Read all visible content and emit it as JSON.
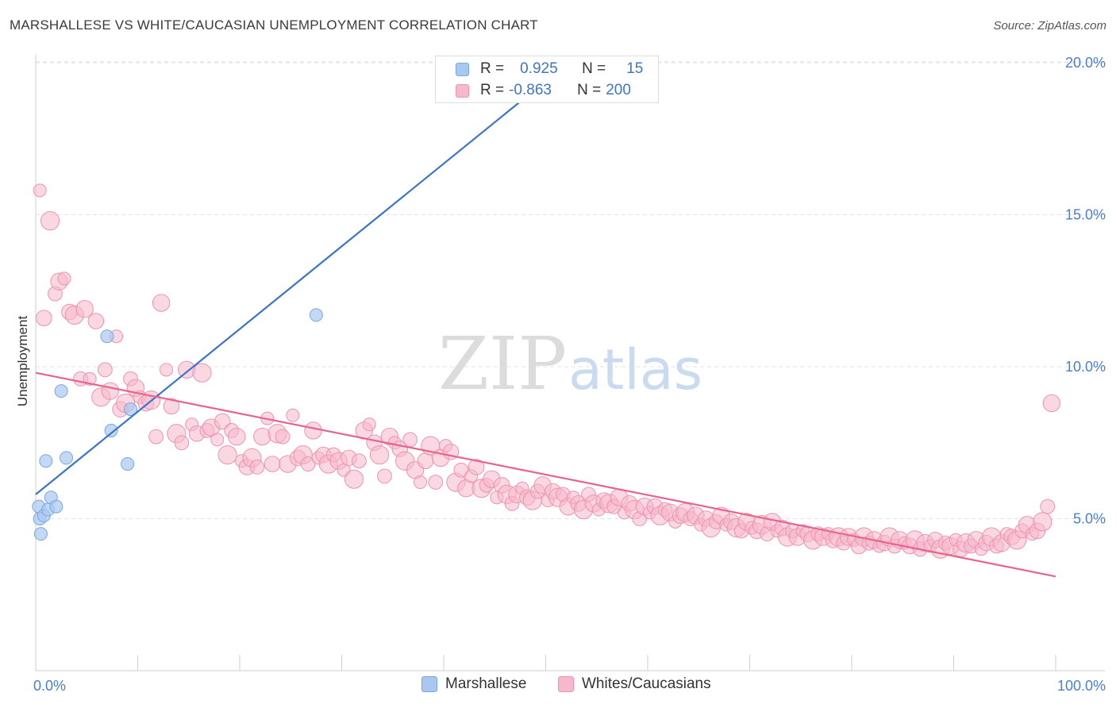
{
  "header": {
    "title": "MARSHALLESE VS WHITE/CAUCASIAN UNEMPLOYMENT CORRELATION CHART",
    "source": "Source: ZipAtlas.com"
  },
  "watermark": {
    "zip": "ZIP",
    "atlas": "atlas"
  },
  "colors": {
    "blue_fill": "#a9c8f0",
    "blue_stroke": "#7aa7e0",
    "blue_line": "#3a74cc",
    "pink_fill": "#f6b8cb",
    "pink_stroke": "#ee93b0",
    "pink_line": "#e8648f",
    "axis_text": "#4a7fcf"
  },
  "legend": {
    "series": [
      {
        "r_label": "R =",
        "r_value": "0.925",
        "n_label": "N =",
        "n_value": "15"
      },
      {
        "r_label": "R =",
        "r_value": "-0.863",
        "n_label": "N =",
        "n_value": "200"
      }
    ]
  },
  "bottom_legend": [
    "Marshallese",
    "Whites/Caucasians"
  ],
  "chart_data": {
    "type": "scatter",
    "title": "MARSHALLESE VS WHITE/CAUCASIAN UNEMPLOYMENT CORRELATION CHART",
    "xlabel": "",
    "ylabel": "Unemployment",
    "xlim": [
      0,
      100
    ],
    "ylim": [
      0,
      20.5
    ],
    "x_ticks": [
      "0.0%",
      "100.0%"
    ],
    "y_ticks": [
      {
        "value": 5,
        "label": "5.0%"
      },
      {
        "value": 10,
        "label": "10.0%"
      },
      {
        "value": 15,
        "label": "15.0%"
      },
      {
        "value": 20,
        "label": "20.0%"
      }
    ],
    "grid": "horizontal dashed",
    "legend_position": "top-center",
    "series": [
      {
        "name": "Marshallese",
        "trend": {
          "x": [
            0,
            50
          ],
          "y": [
            5.8,
            19.4
          ]
        },
        "points": [
          [
            0.3,
            5.4
          ],
          [
            0.4,
            5.0
          ],
          [
            0.5,
            4.5
          ],
          [
            0.8,
            5.1
          ],
          [
            1.0,
            6.9
          ],
          [
            1.2,
            5.3
          ],
          [
            1.5,
            5.7
          ],
          [
            2.0,
            5.4
          ],
          [
            2.5,
            9.2
          ],
          [
            3.0,
            7.0
          ],
          [
            7.0,
            11.0
          ],
          [
            7.4,
            7.9
          ],
          [
            9.0,
            6.8
          ],
          [
            9.3,
            8.6
          ],
          [
            27.5,
            11.7
          ]
        ]
      },
      {
        "name": "Whites/Caucasians",
        "trend": {
          "x": [
            0,
            100
          ],
          "y": [
            9.8,
            3.1
          ]
        },
        "points": [
          [
            0.4,
            15.8
          ],
          [
            0.8,
            11.6
          ],
          [
            1.4,
            14.8
          ],
          [
            1.9,
            12.4
          ],
          [
            2.3,
            12.8
          ],
          [
            2.8,
            12.9
          ],
          [
            3.3,
            11.8
          ],
          [
            3.8,
            11.7
          ],
          [
            4.4,
            9.6
          ],
          [
            4.8,
            11.9
          ],
          [
            5.3,
            9.6
          ],
          [
            5.9,
            11.5
          ],
          [
            6.4,
            9.0
          ],
          [
            6.8,
            9.9
          ],
          [
            7.3,
            9.2
          ],
          [
            7.9,
            11.0
          ],
          [
            8.3,
            8.6
          ],
          [
            8.8,
            8.8
          ],
          [
            9.3,
            9.6
          ],
          [
            9.8,
            9.3
          ],
          [
            10.2,
            9.0
          ],
          [
            10.8,
            8.8
          ],
          [
            11.3,
            8.9
          ],
          [
            11.8,
            7.7
          ],
          [
            12.3,
            12.1
          ],
          [
            12.8,
            9.9
          ],
          [
            13.3,
            8.7
          ],
          [
            13.8,
            7.8
          ],
          [
            14.3,
            7.5
          ],
          [
            14.8,
            9.9
          ],
          [
            15.3,
            8.1
          ],
          [
            15.8,
            7.8
          ],
          [
            16.3,
            9.8
          ],
          [
            16.8,
            7.9
          ],
          [
            17.2,
            8.0
          ],
          [
            17.8,
            7.6
          ],
          [
            18.3,
            8.2
          ],
          [
            18.8,
            7.1
          ],
          [
            19.2,
            7.9
          ],
          [
            19.7,
            7.7
          ],
          [
            20.2,
            6.9
          ],
          [
            20.7,
            6.7
          ],
          [
            21.2,
            7.0
          ],
          [
            21.7,
            6.7
          ],
          [
            22.2,
            7.7
          ],
          [
            22.7,
            8.3
          ],
          [
            23.2,
            6.8
          ],
          [
            23.7,
            7.8
          ],
          [
            24.2,
            7.7
          ],
          [
            24.7,
            6.8
          ],
          [
            25.2,
            8.4
          ],
          [
            25.7,
            7.0
          ],
          [
            26.2,
            7.1
          ],
          [
            26.7,
            6.8
          ],
          [
            27.2,
            7.9
          ],
          [
            27.7,
            7.0
          ],
          [
            28.2,
            7.1
          ],
          [
            28.7,
            6.8
          ],
          [
            29.2,
            7.1
          ],
          [
            29.7,
            6.9
          ],
          [
            30.2,
            6.6
          ],
          [
            30.7,
            7.0
          ],
          [
            31.2,
            6.3
          ],
          [
            31.7,
            6.9
          ],
          [
            32.2,
            7.9
          ],
          [
            32.7,
            8.1
          ],
          [
            33.2,
            7.5
          ],
          [
            33.7,
            7.1
          ],
          [
            34.2,
            6.4
          ],
          [
            34.7,
            7.7
          ],
          [
            35.2,
            7.5
          ],
          [
            35.7,
            7.3
          ],
          [
            36.2,
            6.9
          ],
          [
            36.7,
            7.6
          ],
          [
            37.2,
            6.6
          ],
          [
            37.7,
            6.2
          ],
          [
            38.2,
            6.9
          ],
          [
            38.7,
            7.4
          ],
          [
            39.2,
            6.2
          ],
          [
            39.7,
            7.0
          ],
          [
            40.2,
            7.4
          ],
          [
            40.7,
            7.2
          ],
          [
            41.2,
            6.2
          ],
          [
            41.7,
            6.6
          ],
          [
            42.2,
            6.0
          ],
          [
            42.7,
            6.4
          ],
          [
            43.2,
            6.7
          ],
          [
            43.7,
            6.0
          ],
          [
            44.2,
            6.1
          ],
          [
            44.7,
            6.3
          ],
          [
            45.2,
            5.7
          ],
          [
            45.7,
            6.1
          ],
          [
            46.2,
            5.8
          ],
          [
            46.7,
            5.5
          ],
          [
            47.2,
            5.8
          ],
          [
            47.7,
            6.0
          ],
          [
            48.2,
            5.7
          ],
          [
            48.7,
            5.6
          ],
          [
            49.2,
            5.9
          ],
          [
            49.7,
            6.1
          ],
          [
            50.2,
            5.6
          ],
          [
            50.7,
            5.9
          ],
          [
            51.2,
            5.7
          ],
          [
            51.7,
            5.8
          ],
          [
            52.2,
            5.4
          ],
          [
            52.7,
            5.7
          ],
          [
            53.2,
            5.5
          ],
          [
            53.7,
            5.3
          ],
          [
            54.2,
            5.8
          ],
          [
            54.7,
            5.5
          ],
          [
            55.2,
            5.3
          ],
          [
            55.7,
            5.6
          ],
          [
            56.2,
            5.5
          ],
          [
            56.7,
            5.4
          ],
          [
            57.2,
            5.7
          ],
          [
            57.7,
            5.2
          ],
          [
            58.2,
            5.5
          ],
          [
            58.7,
            5.3
          ],
          [
            59.2,
            5.0
          ],
          [
            59.7,
            5.4
          ],
          [
            60.2,
            5.2
          ],
          [
            60.7,
            5.4
          ],
          [
            61.2,
            5.1
          ],
          [
            61.7,
            5.3
          ],
          [
            62.2,
            5.2
          ],
          [
            62.7,
            4.9
          ],
          [
            63.2,
            5.1
          ],
          [
            63.7,
            5.2
          ],
          [
            64.2,
            5.0
          ],
          [
            64.7,
            5.1
          ],
          [
            65.2,
            4.8
          ],
          [
            65.7,
            5.0
          ],
          [
            66.2,
            4.7
          ],
          [
            66.7,
            4.9
          ],
          [
            67.2,
            5.1
          ],
          [
            67.7,
            4.8
          ],
          [
            68.2,
            4.9
          ],
          [
            68.7,
            4.7
          ],
          [
            69.2,
            4.6
          ],
          [
            69.7,
            4.9
          ],
          [
            70.2,
            4.7
          ],
          [
            70.7,
            4.6
          ],
          [
            71.2,
            4.8
          ],
          [
            71.7,
            4.5
          ],
          [
            72.2,
            4.9
          ],
          [
            72.7,
            4.6
          ],
          [
            73.2,
            4.7
          ],
          [
            73.7,
            4.4
          ],
          [
            74.2,
            4.6
          ],
          [
            74.7,
            4.4
          ],
          [
            75.2,
            4.6
          ],
          [
            75.7,
            4.5
          ],
          [
            76.2,
            4.3
          ],
          [
            76.7,
            4.5
          ],
          [
            77.2,
            4.4
          ],
          [
            77.7,
            4.5
          ],
          [
            78.2,
            4.3
          ],
          [
            78.7,
            4.4
          ],
          [
            79.2,
            4.2
          ],
          [
            79.7,
            4.4
          ],
          [
            80.2,
            4.3
          ],
          [
            80.7,
            4.1
          ],
          [
            81.2,
            4.4
          ],
          [
            81.7,
            4.2
          ],
          [
            82.2,
            4.3
          ],
          [
            82.7,
            4.1
          ],
          [
            83.2,
            4.2
          ],
          [
            83.7,
            4.4
          ],
          [
            84.2,
            4.1
          ],
          [
            84.7,
            4.3
          ],
          [
            85.2,
            4.2
          ],
          [
            85.7,
            4.1
          ],
          [
            86.2,
            4.3
          ],
          [
            86.7,
            4.0
          ],
          [
            87.2,
            4.2
          ],
          [
            87.7,
            4.1
          ],
          [
            88.2,
            4.3
          ],
          [
            88.7,
            4.0
          ],
          [
            89.2,
            4.2
          ],
          [
            89.7,
            4.1
          ],
          [
            90.2,
            4.3
          ],
          [
            90.7,
            4.0
          ],
          [
            91.2,
            4.2
          ],
          [
            91.7,
            4.1
          ],
          [
            92.2,
            4.3
          ],
          [
            92.7,
            4.0
          ],
          [
            93.2,
            4.2
          ],
          [
            93.7,
            4.4
          ],
          [
            94.2,
            4.1
          ],
          [
            94.7,
            4.2
          ],
          [
            95.2,
            4.5
          ],
          [
            95.7,
            4.4
          ],
          [
            96.2,
            4.3
          ],
          [
            96.7,
            4.6
          ],
          [
            97.2,
            4.8
          ],
          [
            97.7,
            4.5
          ],
          [
            98.2,
            4.6
          ],
          [
            98.7,
            4.9
          ],
          [
            99.2,
            5.4
          ],
          [
            99.6,
            8.8
          ]
        ]
      }
    ]
  }
}
